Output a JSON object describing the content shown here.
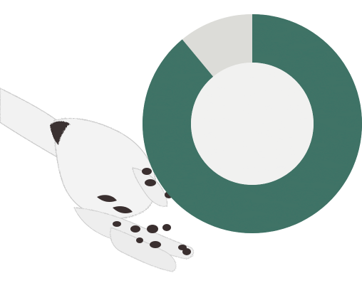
{
  "chart_data": {
    "type": "pie",
    "subtype": "donut",
    "slices": [
      {
        "value": 89,
        "color": "#3f7366"
      },
      {
        "value": 11,
        "color": "#dcdcd8"
      }
    ],
    "center_fill": "#f1f1f0",
    "title": "",
    "legend": "none"
  },
  "decoration": {
    "illustration": "robotic-hand"
  }
}
